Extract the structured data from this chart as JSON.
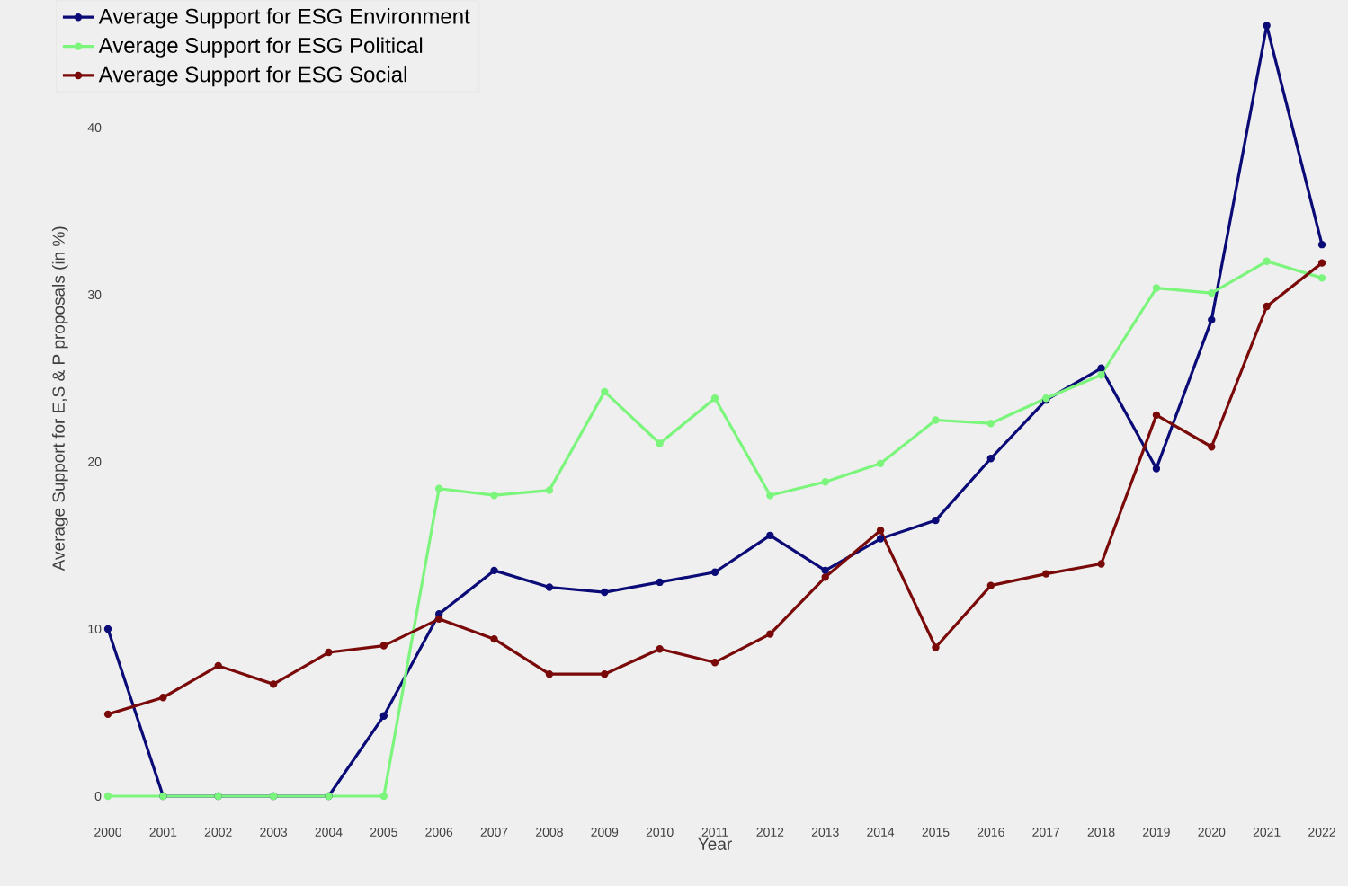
{
  "chart_data": {
    "type": "line",
    "xlabel": "Year",
    "ylabel": "Average Support for E,S & P proposals (in %)",
    "x": [
      2000,
      2001,
      2002,
      2003,
      2004,
      2005,
      2006,
      2007,
      2008,
      2009,
      2010,
      2011,
      2012,
      2013,
      2014,
      2015,
      2016,
      2017,
      2018,
      2019,
      2020,
      2021,
      2022
    ],
    "series": [
      {
        "name": "Average Support for ESG Environment",
        "color": "#0b0b78",
        "values": [
          10,
          0,
          0,
          0,
          0,
          4.8,
          10.9,
          13.5,
          12.5,
          12.2,
          12.8,
          13.4,
          15.6,
          13.5,
          15.4,
          16.5,
          20.2,
          23.7,
          25.6,
          19.6,
          28.5,
          46.1,
          33.0
        ]
      },
      {
        "name": "Average Support for ESG Political",
        "color": "#7cf57c",
        "values": [
          0,
          0,
          0,
          0,
          0,
          0,
          18.4,
          18.0,
          18.3,
          24.2,
          21.1,
          23.8,
          18.0,
          18.8,
          19.9,
          22.5,
          22.3,
          23.8,
          25.2,
          30.4,
          30.1,
          32.0,
          31.0
        ]
      },
      {
        "name": "Average Support for ESG Social",
        "color": "#7a0a0a",
        "values": [
          4.9,
          5.9,
          7.8,
          6.7,
          8.6,
          9.0,
          10.6,
          9.4,
          7.3,
          7.3,
          8.8,
          8.0,
          9.7,
          13.1,
          15.9,
          8.9,
          12.6,
          13.3,
          13.9,
          22.8,
          20.9,
          29.3,
          31.9
        ]
      }
    ],
    "xticks": [
      2000,
      2001,
      2002,
      2003,
      2004,
      2005,
      2006,
      2007,
      2008,
      2009,
      2010,
      2011,
      2012,
      2013,
      2014,
      2015,
      2016,
      2017,
      2018,
      2019,
      2020,
      2021,
      2022
    ],
    "yticks": [
      0,
      10,
      20,
      30,
      40
    ],
    "xlim": [
      2000,
      2022
    ],
    "ylim": [
      0,
      47.6
    ],
    "grid": false,
    "legend": "top left",
    "marker": "circle",
    "line_style": "solid"
  }
}
